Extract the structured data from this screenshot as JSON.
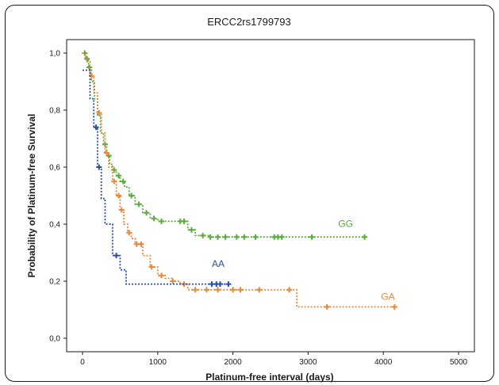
{
  "chart_data": {
    "type": "line",
    "title": "ERCC2rs1799793",
    "xlabel": "Platinum-free interval (days)",
    "ylabel": "Probability of Platinum-free Survival",
    "xlim": [
      0,
      5000
    ],
    "ylim": [
      0,
      1.0
    ],
    "xticks": [
      0,
      1000,
      2000,
      3000,
      4000,
      5000
    ],
    "xtick_labels": [
      "0",
      "1000",
      "2000",
      "3000",
      "4000",
      "5000"
    ],
    "yticks": [
      0,
      0.2,
      0.4,
      0.6,
      0.8,
      1.0
    ],
    "ytick_labels": [
      "0,0",
      "0,2",
      "0,4",
      "0,6",
      "0,8",
      "1,0"
    ],
    "grid": false,
    "series": [
      {
        "name": "GG",
        "color": "#5aab3c",
        "x": [
          0,
          40,
          80,
          120,
          160,
          200,
          240,
          280,
          320,
          360,
          400,
          450,
          500,
          560,
          620,
          700,
          800,
          900,
          1000,
          1200,
          1400,
          1500,
          1700,
          2000,
          2600,
          3000,
          3780
        ],
        "y": [
          1.0,
          0.98,
          0.95,
          0.9,
          0.84,
          0.78,
          0.72,
          0.68,
          0.64,
          0.61,
          0.59,
          0.57,
          0.55,
          0.53,
          0.5,
          0.47,
          0.44,
          0.42,
          0.41,
          0.41,
          0.38,
          0.36,
          0.355,
          0.355,
          0.355,
          0.355,
          0.355
        ],
        "censor_x": [
          30,
          60,
          90,
          300,
          350,
          420,
          480,
          540,
          650,
          750,
          850,
          950,
          1050,
          1300,
          1350,
          1450,
          1600,
          1700,
          1800,
          1900,
          2050,
          2150,
          2300,
          2550,
          2600,
          2650,
          3050,
          3750
        ],
        "label": "GG"
      },
      {
        "name": "GA",
        "color": "#e8883a",
        "x": [
          0,
          50,
          100,
          150,
          200,
          250,
          300,
          350,
          400,
          450,
          500,
          550,
          600,
          650,
          700,
          800,
          900,
          1000,
          1100,
          1200,
          1300,
          1400,
          2000,
          2800,
          2850,
          4170
        ],
        "y": [
          1.0,
          0.97,
          0.92,
          0.86,
          0.79,
          0.72,
          0.65,
          0.6,
          0.55,
          0.5,
          0.45,
          0.4,
          0.37,
          0.35,
          0.33,
          0.29,
          0.25,
          0.22,
          0.21,
          0.2,
          0.19,
          0.17,
          0.17,
          0.17,
          0.11,
          0.11
        ],
        "censor_x": [
          120,
          220,
          320,
          420,
          480,
          520,
          620,
          720,
          780,
          920,
          1050,
          1200,
          1350,
          1500,
          1650,
          1800,
          2000,
          2100,
          2350,
          2750,
          3250,
          4150
        ],
        "label": "GA"
      },
      {
        "name": "AA",
        "color": "#2a4f9c",
        "x": [
          0,
          100,
          150,
          200,
          250,
          300,
          400,
          500,
          580,
          1950
        ],
        "y": [
          0.94,
          0.84,
          0.74,
          0.6,
          0.49,
          0.4,
          0.29,
          0.24,
          0.19,
          0.19
        ],
        "censor_x": [
          180,
          220,
          450,
          1720,
          1780,
          1830,
          1940
        ],
        "label": "AA"
      }
    ]
  }
}
